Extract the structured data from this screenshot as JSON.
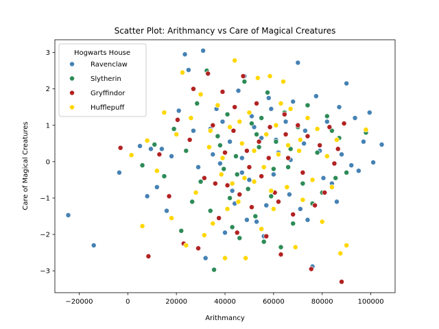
{
  "chart_data": {
    "type": "scatter",
    "title": "Scatter Plot: Arithmancy vs Care of Magical Creatures",
    "xlabel": "Arithmancy",
    "ylabel": "Care of Magical Creatures",
    "xlim": [
      -30000,
      110000
    ],
    "ylim": [
      -3.6,
      3.35
    ],
    "x_ticks": [
      -20000,
      0,
      20000,
      40000,
      60000,
      80000,
      100000
    ],
    "y_ticks": [
      -3,
      -2,
      -1,
      0,
      1,
      2,
      3
    ],
    "x_tick_labels": [
      "−20000",
      "0",
      "20000",
      "40000",
      "60000",
      "80000",
      "100000"
    ],
    "y_tick_labels": [
      "−3",
      "−2",
      "−1",
      "0",
      "1",
      "2",
      "3"
    ],
    "grid": false,
    "legend": {
      "title": "Hogwarts House",
      "placement": "top-left",
      "entries": [
        "Ravenclaw",
        "Slytherin",
        "Gryffindor",
        "Hufflepuff"
      ]
    },
    "series": [
      {
        "name": "Ravenclaw",
        "color": "#4682b4",
        "points": [
          [
            -24500,
            -1.47
          ],
          [
            -14000,
            -2.3
          ],
          [
            -3500,
            -0.3
          ],
          [
            5000,
            0.43
          ],
          [
            8000,
            -0.95
          ],
          [
            9500,
            0.35
          ],
          [
            12000,
            -0.7
          ],
          [
            14000,
            0.35
          ],
          [
            16000,
            -1.35
          ],
          [
            18000,
            0.15
          ],
          [
            21000,
            1.4
          ],
          [
            23500,
            2.95
          ],
          [
            25000,
            2.52
          ],
          [
            27000,
            0.85
          ],
          [
            29000,
            -0.15
          ],
          [
            31000,
            3.05
          ],
          [
            32000,
            -2.65
          ],
          [
            34000,
            0.9
          ],
          [
            36500,
            1.45
          ],
          [
            38000,
            -0.05
          ],
          [
            40000,
            -1.95
          ],
          [
            42000,
            0.55
          ],
          [
            44000,
            -1.15
          ],
          [
            45500,
            1.95
          ],
          [
            47000,
            0.1
          ],
          [
            48000,
            2.35
          ],
          [
            50000,
            -0.5
          ],
          [
            51000,
            1.25
          ],
          [
            53000,
            -1.65
          ],
          [
            55000,
            0.65
          ],
          [
            56000,
            -2.05
          ],
          [
            58000,
            1.75
          ],
          [
            60000,
            -0.35
          ],
          [
            62000,
            0.25
          ],
          [
            63000,
            -2.35
          ],
          [
            65000,
            1.1
          ],
          [
            66500,
            -0.9
          ],
          [
            68000,
            1.65
          ],
          [
            70000,
            2.72
          ],
          [
            71000,
            -1.3
          ],
          [
            72500,
            0.5
          ],
          [
            74000,
            -1.6
          ],
          [
            76000,
            -2.88
          ],
          [
            77500,
            1.8
          ],
          [
            79000,
            0.3
          ],
          [
            80500,
            -0.45
          ],
          [
            82000,
            1.1
          ],
          [
            84000,
            -0.6
          ],
          [
            86000,
            -1.1
          ],
          [
            87000,
            1.5
          ],
          [
            88000,
            0.2
          ],
          [
            90000,
            2.15
          ],
          [
            92000,
            -0.1
          ],
          [
            93500,
            1.2
          ],
          [
            95000,
            -0.25
          ],
          [
            97000,
            0.55
          ],
          [
            99500,
            1.35
          ],
          [
            101000,
            -0.02
          ],
          [
            104500,
            0.47
          ],
          [
            35000,
            0.2
          ],
          [
            43000,
            -0.8
          ],
          [
            52000,
            0.95
          ],
          [
            57000,
            -1.2
          ],
          [
            61000,
            0.6
          ],
          [
            39000,
            1.1
          ],
          [
            47000,
            -0.3
          ],
          [
            67000,
            0.05
          ],
          [
            59000,
            1.45
          ],
          [
            49000,
            -1.6
          ],
          [
            73000,
            0.85
          ]
        ]
      },
      {
        "name": "Slytherin",
        "color": "#2e8b57",
        "points": [
          [
            6000,
            -0.1
          ],
          [
            11000,
            0.47
          ],
          [
            15000,
            -0.4
          ],
          [
            19000,
            0.9
          ],
          [
            22000,
            -1.9
          ],
          [
            24000,
            0.3
          ],
          [
            26500,
            -1.1
          ],
          [
            28500,
            1.6
          ],
          [
            30000,
            -0.55
          ],
          [
            32500,
            2.5
          ],
          [
            34000,
            -1.35
          ],
          [
            35500,
            -2.97
          ],
          [
            37000,
            0.7
          ],
          [
            39500,
            -0.2
          ],
          [
            41000,
            1.3
          ],
          [
            43000,
            -1.8
          ],
          [
            44500,
            0.15
          ],
          [
            46000,
            -2.1
          ],
          [
            48000,
            2.2
          ],
          [
            49500,
            -0.75
          ],
          [
            51000,
            1.05
          ],
          [
            52500,
            -1.5
          ],
          [
            54000,
            0.4
          ],
          [
            56000,
            -2.2
          ],
          [
            57500,
            1.9
          ],
          [
            59000,
            -0.95
          ],
          [
            61000,
            0.55
          ],
          [
            63000,
            -2.35
          ],
          [
            64500,
            1.35
          ],
          [
            66000,
            -0.15
          ],
          [
            68000,
            -1.7
          ],
          [
            70000,
            0.95
          ],
          [
            72000,
            -0.6
          ],
          [
            74000,
            1.55
          ],
          [
            76000,
            -1.15
          ],
          [
            78000,
            0.25
          ],
          [
            80000,
            -0.85
          ],
          [
            82000,
            1.25
          ],
          [
            84000,
            0.85
          ],
          [
            85500,
            -0.45
          ],
          [
            87000,
            0.65
          ],
          [
            90000,
            -0.3
          ],
          [
            98000,
            0.8
          ],
          [
            38000,
            0.45
          ],
          [
            45000,
            -0.35
          ],
          [
            53000,
            0.75
          ],
          [
            60000,
            -0.2
          ],
          [
            67000,
            0.35
          ],
          [
            42000,
            -1.0
          ],
          [
            55000,
            1.2
          ]
        ]
      },
      {
        "name": "Gryffindor",
        "color": "#b22222",
        "points": [
          [
            -3000,
            0.38
          ],
          [
            8500,
            -2.6
          ],
          [
            13000,
            0.2
          ],
          [
            17000,
            -0.95
          ],
          [
            20500,
            1.15
          ],
          [
            23000,
            -2.25
          ],
          [
            25500,
            0.6
          ],
          [
            27000,
            2.0
          ],
          [
            29000,
            -2.38
          ],
          [
            31500,
            -0.45
          ],
          [
            33000,
            2.42
          ],
          [
            35000,
            1.0
          ],
          [
            37500,
            -1.55
          ],
          [
            39000,
            1.92
          ],
          [
            41000,
            -0.65
          ],
          [
            43500,
            0.85
          ],
          [
            45000,
            -1.95
          ],
          [
            47500,
            2.35
          ],
          [
            49000,
            0.3
          ],
          [
            51000,
            -1.25
          ],
          [
            53000,
            1.6
          ],
          [
            55000,
            -0.4
          ],
          [
            57000,
            -2.05
          ],
          [
            58500,
            0.95
          ],
          [
            60500,
            -0.85
          ],
          [
            63000,
            -2.55
          ],
          [
            64500,
            1.3
          ],
          [
            66000,
            0.1
          ],
          [
            68000,
            -1.45
          ],
          [
            70000,
            1.0
          ],
          [
            72000,
            -0.3
          ],
          [
            74000,
            0.7
          ],
          [
            75500,
            -2.95
          ],
          [
            77000,
            -1.2
          ],
          [
            79000,
            0.45
          ],
          [
            81000,
            -0.85
          ],
          [
            83000,
            0.95
          ],
          [
            85000,
            -0.05
          ],
          [
            86500,
            0.35
          ],
          [
            88000,
            -3.3
          ],
          [
            89000,
            1.05
          ],
          [
            40000,
            0.25
          ],
          [
            46000,
            -0.9
          ],
          [
            54000,
            0.55
          ],
          [
            62000,
            -1.1
          ],
          [
            50000,
            -0.15
          ],
          [
            58000,
            0.1
          ],
          [
            44000,
            1.5
          ],
          [
            36000,
            -0.6
          ],
          [
            65000,
            0.75
          ]
        ]
      },
      {
        "name": "Hufflepuff",
        "color": "#ffd700",
        "points": [
          [
            1500,
            0.18
          ],
          [
            6000,
            -1.77
          ],
          [
            8000,
            0.58
          ],
          [
            12000,
            -0.25
          ],
          [
            15000,
            1.35
          ],
          [
            18000,
            -1.55
          ],
          [
            20000,
            0.75
          ],
          [
            22500,
            2.45
          ],
          [
            24000,
            -2.3
          ],
          [
            26000,
            1.2
          ],
          [
            28000,
            -0.85
          ],
          [
            30000,
            1.85
          ],
          [
            31500,
            -2.02
          ],
          [
            33500,
            0.4
          ],
          [
            35000,
            -1.7
          ],
          [
            37000,
            1.55
          ],
          [
            38500,
            -0.35
          ],
          [
            40000,
            -2.65
          ],
          [
            42000,
            0.95
          ],
          [
            44000,
            2.78
          ],
          [
            45500,
            -1.1
          ],
          [
            47000,
            0.5
          ],
          [
            48500,
            -2.65
          ],
          [
            50000,
            1.35
          ],
          [
            52000,
            -0.55
          ],
          [
            53500,
            2.3
          ],
          [
            55000,
            -1.85
          ],
          [
            57000,
            0.75
          ],
          [
            58500,
            2.35
          ],
          [
            60000,
            -1.3
          ],
          [
            62000,
            0.2
          ],
          [
            64000,
            2.2
          ],
          [
            65500,
            -0.7
          ],
          [
            67000,
            1.45
          ],
          [
            69000,
            -2.35
          ],
          [
            70500,
            0.3
          ],
          [
            72000,
            -1.05
          ],
          [
            74000,
            1.2
          ],
          [
            76000,
            -0.5
          ],
          [
            78000,
            0.9
          ],
          [
            80000,
            -1.65
          ],
          [
            82000,
            0.15
          ],
          [
            84000,
            -0.7
          ],
          [
            86000,
            0.6
          ],
          [
            87500,
            -2.52
          ],
          [
            90000,
            -2.3
          ],
          [
            98000,
            0.88
          ],
          [
            39000,
            0.1
          ],
          [
            46000,
            1.1
          ],
          [
            56000,
            -0.15
          ],
          [
            61000,
            1.0
          ],
          [
            48000,
            -0.45
          ],
          [
            66000,
            0.45
          ],
          [
            34000,
            0.85
          ],
          [
            43000,
            -0.6
          ],
          [
            52000,
            0.3
          ],
          [
            59000,
            -0.8
          ],
          [
            71000,
            0.6
          ],
          [
            41000,
            -1.3
          ],
          [
            63000,
            1.6
          ]
        ]
      }
    ]
  }
}
